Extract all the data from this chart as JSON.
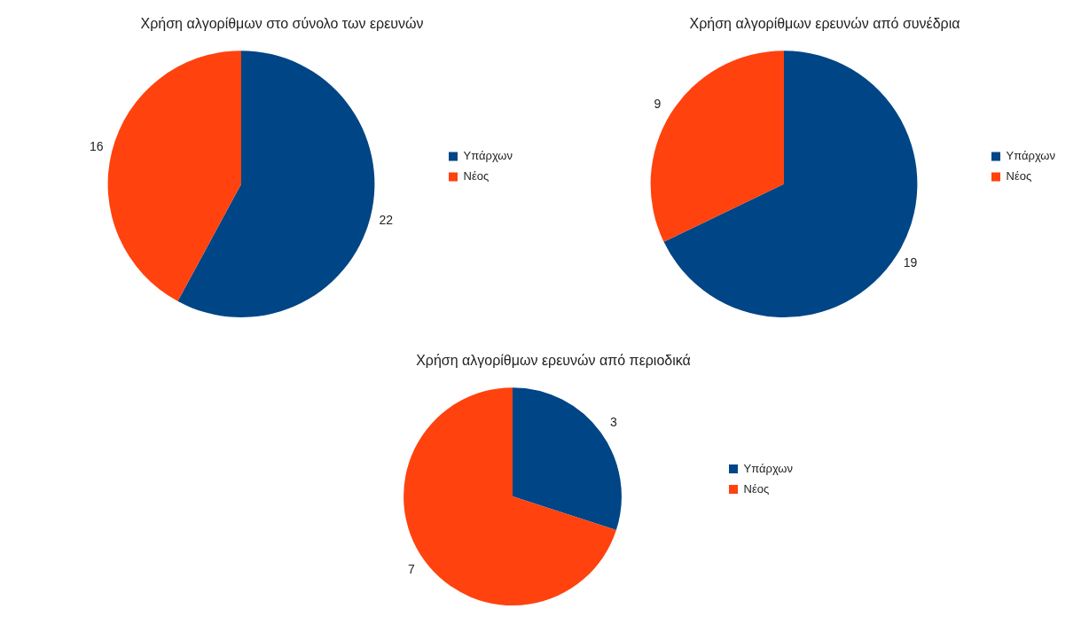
{
  "chart_data": [
    {
      "type": "pie",
      "title": "Χρήση αλγορίθμων στο σύνολο των ερευνών",
      "categories": [
        "Υπάρχων",
        "Νέος"
      ],
      "values": [
        22,
        16
      ],
      "colors": [
        "#004586",
        "#ff420e"
      ],
      "data_labels": true,
      "legend": "right"
    },
    {
      "type": "pie",
      "title": "Χρήση αλγορίθμων ερευνών από συνέδρια",
      "categories": [
        "Υπάρχων",
        "Νέος"
      ],
      "values": [
        19,
        9
      ],
      "colors": [
        "#004586",
        "#ff420e"
      ],
      "data_labels": true,
      "legend": "right"
    },
    {
      "type": "pie",
      "title": "Χρήση αλγορίθμων ερευνών από περιοδικά",
      "categories": [
        "Υπάρχων",
        "Νέος"
      ],
      "values": [
        3,
        7
      ],
      "colors": [
        "#004586",
        "#ff420e"
      ],
      "data_labels": true,
      "legend": "right"
    }
  ]
}
